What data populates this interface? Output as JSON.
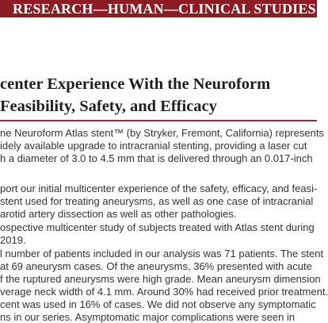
{
  "header": {
    "section": "RESEARCH—HUMAN—CLINICAL STUDIES"
  },
  "article": {
    "title_lines": [
      "center Experience With the Neuroform",
      "Feasibility, Safety, and Efficacy"
    ],
    "body_lines": [
      "ne Neuroform Atlas stent™ (by Stryker, Fremont, California) represents",
      "idely available upgrade to intracranial stenting, providing a laser cut",
      "h a diameter of 3.0 to 4.5 mm that is delivered through an 0.017-inch",
      "",
      "port our initial multicenter experience of the safety, efficacy, and feasi-",
      "stent used for treating aneurysms, as well as one case of intracranial",
      "arotid artery dissection as well as other pathologies.",
      "ospective multicenter study of subjects treated with Atlas stent during",
      "2019.",
      "l number of patients included in our analysis was 71 patients. The stent",
      "at 69 aneurysm cases. Of the aneurysms, 36% presented with acute",
      "f the ruptured aneurysms were high grade. Mean aneurysm dimension",
      "verage neck width of 4.1 mm. Around 30% had received prior treatment.",
      "cent was used in 16% of cases. We did not observe any symptomatic",
      "ns in our series. Asymptomatic major complications were seen in"
    ]
  }
}
